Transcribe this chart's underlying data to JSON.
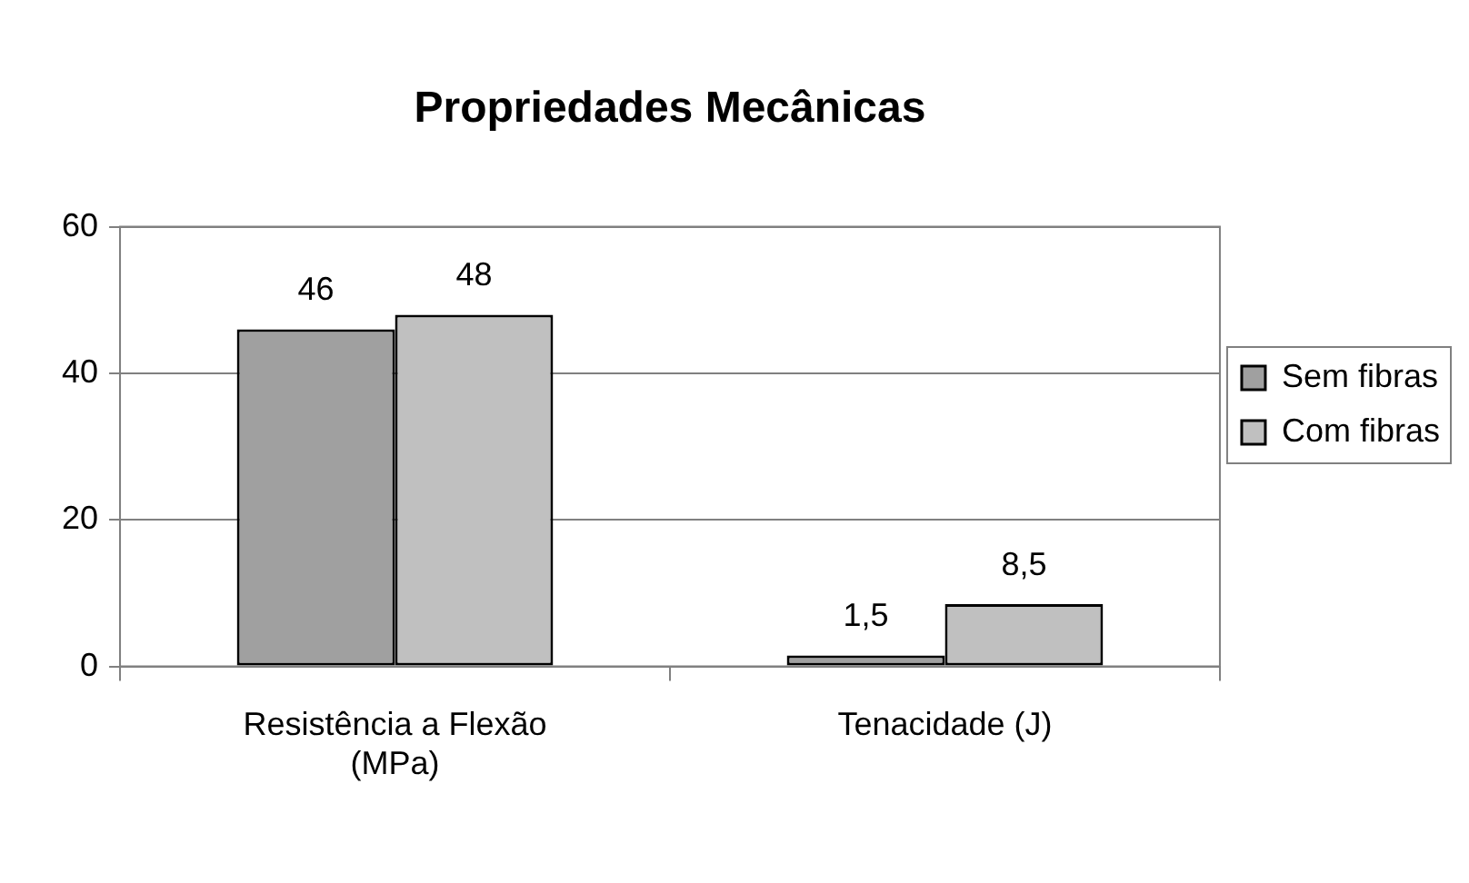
{
  "chart_data": {
    "type": "bar",
    "title": "Propriedades Mecânicas",
    "categories": [
      "Resistência a Flexão (MPa)",
      "Tenacidade (J)"
    ],
    "series": [
      {
        "name": "Sem fibras",
        "color": "#a0a0a0",
        "values": [
          46,
          1.5
        ],
        "value_labels": [
          "46",
          "1,5"
        ]
      },
      {
        "name": "Com fibras",
        "color": "#c0c0c0",
        "values": [
          48,
          8.5
        ],
        "value_labels": [
          "48",
          "8,5"
        ]
      }
    ],
    "ylim": [
      0,
      60
    ],
    "yticks": [
      0,
      20,
      40,
      60
    ],
    "grid": "y",
    "legend": "right"
  }
}
